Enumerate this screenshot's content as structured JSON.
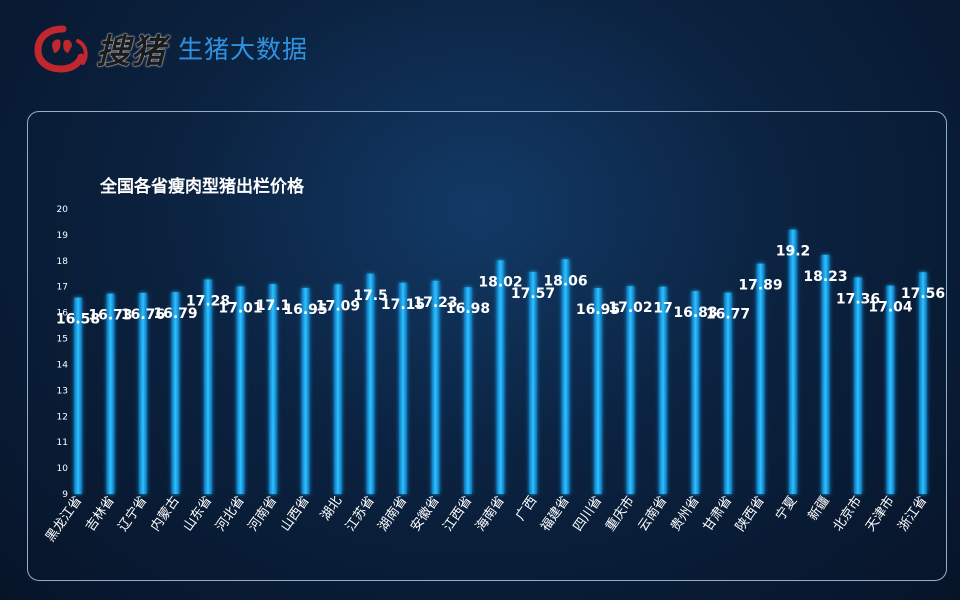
{
  "header": {
    "brand_name": "搜猪",
    "brand_subtitle": "生猪大数据",
    "logo_icon": "pig-logo-icon",
    "logo_color": "#c0282e",
    "subtitle_color": "#2f92e0"
  },
  "chart_data": {
    "type": "bar",
    "title": "全国各省瘦肉型猪出栏价格",
    "xlabel": "",
    "ylabel": "",
    "ylim": [
      9,
      20
    ],
    "yticks": [
      "9",
      "10",
      "11",
      "12",
      "13",
      "14",
      "15",
      "16",
      "17",
      "18",
      "19",
      "20"
    ],
    "grid": false,
    "bar_color": "#1aa7e8",
    "categories": [
      "黑龙江省",
      "吉林省",
      "辽宁省",
      "内蒙古",
      "山东省",
      "河北省",
      "河南省",
      "山西省",
      "湖北",
      "江苏省",
      "湖南省",
      "安徽省",
      "江西省",
      "海南省",
      "广西",
      "福建省",
      "四川省",
      "重庆市",
      "云南省",
      "贵州省",
      "甘肃省",
      "陕西省",
      "宁夏",
      "新疆",
      "北京市",
      "天津市",
      "浙江省"
    ],
    "values": [
      16.58,
      16.73,
      16.76,
      16.79,
      17.28,
      17.01,
      17.1,
      16.95,
      17.09,
      17.5,
      17.15,
      17.23,
      16.98,
      18.02,
      17.57,
      18.06,
      16.95,
      17.02,
      17,
      16.83,
      16.77,
      17.89,
      19.2,
      18.23,
      17.36,
      17.04,
      17.56
    ],
    "data_labels": [
      "16.58",
      "16.73",
      "16.76",
      "16.79",
      "17.28",
      "17.01",
      "17.1",
      "16.95",
      "17.09",
      "17.5",
      "17.15",
      "17.23",
      "16.98",
      "18.02",
      "17.57",
      "18.06",
      "16.95",
      "17.02",
      "17",
      "16.83",
      "16.77",
      "17.89",
      "19.2",
      "18.23",
      "17.36",
      "17.04",
      "17.56"
    ]
  }
}
